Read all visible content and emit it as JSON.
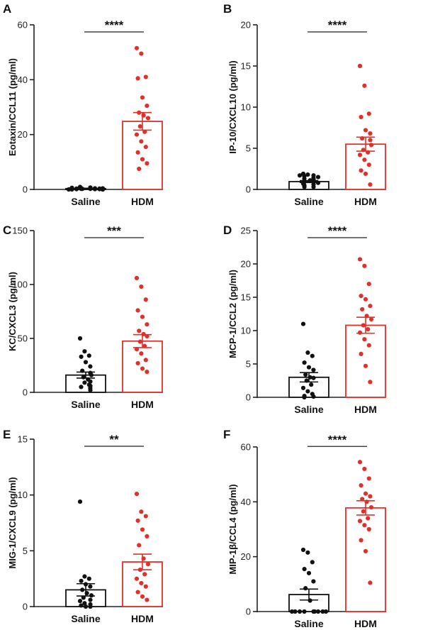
{
  "colors": {
    "saline": "#111111",
    "hdm": "#e0302a",
    "axis": "#222222"
  },
  "chart_data": [
    {
      "type": "bar",
      "panel": "A",
      "ylabel": "Eotaxin/CCL11 (pg/ml)",
      "ylim": [
        0,
        60
      ],
      "yticks": [
        0,
        20,
        40,
        60
      ],
      "significance": "****",
      "categories": [
        "Saline",
        "HDM"
      ],
      "series": [
        {
          "mean": 0.3,
          "sem": 0.15,
          "points": [
            0.9,
            0.7,
            0.5,
            0.4,
            0.3,
            0.3,
            0.2,
            0.2,
            0.2,
            0.1,
            0.1,
            0.1,
            0,
            0,
            0,
            0,
            0.6,
            0.4
          ]
        },
        {
          "mean": 24.8,
          "sem": 3.2,
          "points": [
            51.5,
            49.5,
            41,
            40.5,
            33.5,
            30.5,
            28,
            27,
            26,
            23,
            21,
            20,
            17.5,
            15.5,
            13.5,
            11,
            9.5,
            7.5
          ]
        }
      ]
    },
    {
      "type": "bar",
      "panel": "B",
      "ylabel": "IP-10/CXCL10 (pg/ml)",
      "ylim": [
        0,
        20
      ],
      "yticks": [
        0,
        5,
        10,
        15,
        20
      ],
      "significance": "****",
      "categories": [
        "Saline",
        "HDM"
      ],
      "series": [
        {
          "mean": 0.95,
          "sem": 0.12,
          "points": [
            1.9,
            1.8,
            1.7,
            1.6,
            1.5,
            1.4,
            1.2,
            1.1,
            1.0,
            0.9,
            0.8,
            0.7,
            0.6,
            0.5,
            0.3,
            0.3,
            1.7,
            1.3
          ]
        },
        {
          "mean": 5.5,
          "sem": 0.85,
          "points": [
            15,
            12.6,
            9.2,
            8.8,
            7.2,
            6.8,
            6.2,
            6.0,
            5.4,
            4.8,
            4.5,
            4.2,
            3.6,
            3.0,
            2.3,
            1.9,
            0.6
          ]
        }
      ]
    },
    {
      "type": "bar",
      "panel": "C",
      "ylabel": "KC/CXCL3 (pg/ml)",
      "ylim": [
        0,
        150
      ],
      "yticks": [
        0,
        50,
        100,
        150
      ],
      "significance": "***",
      "categories": [
        "Saline",
        "HDM"
      ],
      "series": [
        {
          "mean": 16,
          "sem": 2.8,
          "points": [
            50,
            38,
            34,
            33,
            28,
            24,
            20,
            18,
            16,
            14,
            12,
            10,
            9,
            7,
            6,
            5,
            4,
            2
          ]
        },
        {
          "mean": 47.5,
          "sem": 6,
          "points": [
            106,
            98,
            86,
            76,
            70,
            63,
            57,
            54,
            52,
            47,
            43,
            40,
            36,
            30,
            27,
            22,
            19
          ]
        }
      ]
    },
    {
      "type": "bar",
      "panel": "D",
      "ylabel": "MCP-1/CCL2 (pg/ml)",
      "ylim": [
        0,
        25
      ],
      "yticks": [
        0,
        5,
        10,
        15,
        20,
        25
      ],
      "significance": "****",
      "categories": [
        "Saline",
        "HDM"
      ],
      "series": [
        {
          "mean": 3.0,
          "sem": 0.7,
          "points": [
            11,
            6.7,
            6.2,
            5.2,
            4.5,
            4.1,
            3.4,
            3.0,
            2.9,
            2.5,
            1.9,
            1.4,
            0.9,
            0.5,
            0.2,
            0.1,
            0
          ]
        },
        {
          "mean": 10.8,
          "sem": 1.2,
          "points": [
            20.7,
            19.7,
            17,
            15.2,
            14.7,
            13.7,
            13.2,
            12.2,
            11.7,
            10.8,
            10.2,
            9.7,
            8.7,
            7.8,
            6.5,
            4.7,
            2.3
          ]
        }
      ]
    },
    {
      "type": "bar",
      "panel": "E",
      "ylabel": "MIG-1/CXCL9 (pg/ml)",
      "ylim": [
        0,
        15
      ],
      "yticks": [
        0,
        5,
        10,
        15
      ],
      "significance": "**",
      "categories": [
        "Saline",
        "HDM"
      ],
      "series": [
        {
          "mean": 1.5,
          "sem": 0.55,
          "points": [
            9.4,
            2.7,
            2.5,
            2.3,
            2.0,
            1.8,
            1.5,
            1.2,
            1.0,
            0.8,
            0.6,
            0.5,
            0.3,
            0.2,
            0.1,
            0,
            0
          ]
        },
        {
          "mean": 4.0,
          "sem": 0.7,
          "points": [
            10.1,
            8.5,
            8.1,
            7.7,
            6.9,
            6.3,
            5.5,
            4.3,
            3.8,
            3.3,
            2.9,
            2.5,
            2.1,
            1.8,
            1.3,
            0.9,
            0.6
          ]
        }
      ]
    },
    {
      "type": "bar",
      "panel": "F",
      "ylabel": "MIP-1β/CCL4 (pg/ml)",
      "ylim": [
        0,
        60
      ],
      "yticks": [
        0,
        20,
        40,
        60
      ],
      "significance": "****",
      "categories": [
        "Saline",
        "HDM"
      ],
      "series": [
        {
          "mean": 6.2,
          "sem": 2.0,
          "points": [
            22.5,
            21.5,
            18,
            15.5,
            14,
            11,
            8.5,
            4,
            0,
            0,
            0,
            0,
            0,
            0,
            0,
            0,
            0
          ]
        },
        {
          "mean": 37.8,
          "sem": 2.6,
          "points": [
            54.5,
            52,
            48.5,
            46,
            43,
            42,
            41,
            40,
            38,
            36.5,
            34,
            33,
            31.5,
            30,
            26,
            22,
            10.5
          ]
        }
      ]
    }
  ]
}
